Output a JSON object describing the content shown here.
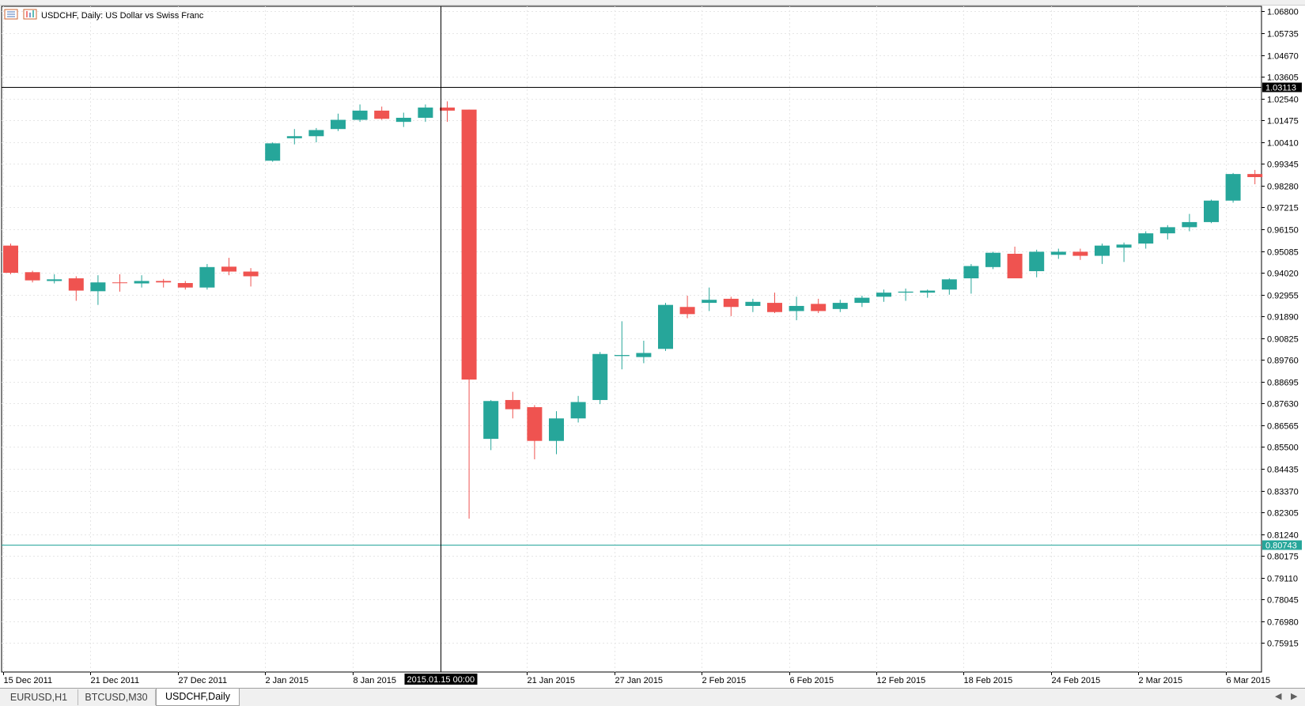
{
  "window": {
    "title": "USDCHF, Daily:  US Dollar vs Swiss Franc"
  },
  "crosshair": {
    "price_label": "1.03113",
    "time_label": "2015.01.15 00:00"
  },
  "levels": {
    "bid_label": "0.80743",
    "bid_value": 0.80743,
    "bid_color": "#26a69a"
  },
  "tabs": [
    {
      "label": "EURUSD,H1",
      "active": false
    },
    {
      "label": "BTCUSD,M30",
      "active": false
    },
    {
      "label": "USDCHF,Daily",
      "active": true
    }
  ],
  "colors": {
    "bull": "#26a69a",
    "bear": "#ef5350",
    "grid": "#e6e6e6",
    "axis": "#000000"
  },
  "chart_data": {
    "type": "candlestick",
    "title": "USDCHF, Daily:  US Dollar vs Swiss Franc",
    "y_range": [
      0.745,
      1.0705
    ],
    "y_ticks": [
      "1.06800",
      "1.05735",
      "1.04670",
      "1.03605",
      "1.02540",
      "1.01475",
      "1.00410",
      "0.99345",
      "0.98280",
      "0.97215",
      "0.96150",
      "0.95085",
      "0.94020",
      "0.92955",
      "0.91890",
      "0.90825",
      "0.89760",
      "0.88695",
      "0.87630",
      "0.86565",
      "0.85500",
      "0.84435",
      "0.83370",
      "0.82305",
      "0.81240",
      "0.80175",
      "0.79110",
      "0.78045",
      "0.76980",
      "0.75915"
    ],
    "x_labels": [
      {
        "label": "15 Dec 2011",
        "index": 0
      },
      {
        "label": "21 Dec 2011",
        "index": 4
      },
      {
        "label": "27 Dec 2011",
        "index": 8
      },
      {
        "label": "2 Jan 2015",
        "index": 12
      },
      {
        "label": "8 Jan 2015",
        "index": 16
      },
      {
        "label": "21 Jan 2015",
        "index": 24
      },
      {
        "label": "27 Jan 2015",
        "index": 28
      },
      {
        "label": "2 Feb 2015",
        "index": 32
      },
      {
        "label": "6 Feb 2015",
        "index": 36
      },
      {
        "label": "12 Feb 2015",
        "index": 40
      },
      {
        "label": "18 Feb 2015",
        "index": 44
      },
      {
        "label": "24 Feb 2015",
        "index": 48
      },
      {
        "label": "2 Mar 2015",
        "index": 52
      },
      {
        "label": "6 Mar 2015",
        "index": 56
      }
    ],
    "crosshair_index": 20,
    "crosshair_price": 1.03113,
    "candles": [
      {
        "o": 0.9535,
        "h": 0.9545,
        "l": 0.9395,
        "c": 0.9402
      },
      {
        "o": 0.9405,
        "h": 0.9412,
        "l": 0.9355,
        "c": 0.9365
      },
      {
        "o": 0.9362,
        "h": 0.9395,
        "l": 0.935,
        "c": 0.937
      },
      {
        "o": 0.9375,
        "h": 0.9385,
        "l": 0.9265,
        "c": 0.9315
      },
      {
        "o": 0.9312,
        "h": 0.939,
        "l": 0.9245,
        "c": 0.9355
      },
      {
        "o": 0.9355,
        "h": 0.9395,
        "l": 0.931,
        "c": 0.9352
      },
      {
        "o": 0.935,
        "h": 0.939,
        "l": 0.933,
        "c": 0.9362
      },
      {
        "o": 0.9362,
        "h": 0.9372,
        "l": 0.933,
        "c": 0.9355
      },
      {
        "o": 0.9352,
        "h": 0.9362,
        "l": 0.932,
        "c": 0.933
      },
      {
        "o": 0.933,
        "h": 0.9445,
        "l": 0.932,
        "c": 0.943
      },
      {
        "o": 0.9432,
        "h": 0.9475,
        "l": 0.939,
        "c": 0.9408
      },
      {
        "o": 0.9408,
        "h": 0.9425,
        "l": 0.9335,
        "c": 0.9385
      },
      {
        "o": 0.995,
        "h": 1.004,
        "l": 0.9945,
        "c": 1.0035
      },
      {
        "o": 1.006,
        "h": 1.0105,
        "l": 1.003,
        "c": 1.007
      },
      {
        "o": 1.007,
        "h": 1.011,
        "l": 1.004,
        "c": 1.01
      },
      {
        "o": 1.0105,
        "h": 1.018,
        "l": 1.0095,
        "c": 1.015
      },
      {
        "o": 1.015,
        "h": 1.0225,
        "l": 1.014,
        "c": 1.0195
      },
      {
        "o": 1.0195,
        "h": 1.0215,
        "l": 1.015,
        "c": 1.0155
      },
      {
        "o": 1.014,
        "h": 1.0185,
        "l": 1.0115,
        "c": 1.016
      },
      {
        "o": 1.016,
        "h": 1.0225,
        "l": 1.014,
        "c": 1.021
      },
      {
        "o": 1.021,
        "h": 1.024,
        "l": 1.014,
        "c": 1.0195
      },
      {
        "o": 1.02,
        "h": 1.02,
        "l": 0.82,
        "c": 0.888
      },
      {
        "o": 0.859,
        "h": 0.878,
        "l": 0.8535,
        "c": 0.8775
      },
      {
        "o": 0.878,
        "h": 0.882,
        "l": 0.869,
        "c": 0.8735
      },
      {
        "o": 0.8745,
        "h": 0.8755,
        "l": 0.849,
        "c": 0.858
      },
      {
        "o": 0.858,
        "h": 0.8725,
        "l": 0.8515,
        "c": 0.869
      },
      {
        "o": 0.869,
        "h": 0.88,
        "l": 0.867,
        "c": 0.877
      },
      {
        "o": 0.878,
        "h": 0.9015,
        "l": 0.876,
        "c": 0.9005
      },
      {
        "o": 0.8995,
        "h": 0.9165,
        "l": 0.893,
        "c": 0.9
      },
      {
        "o": 0.899,
        "h": 0.907,
        "l": 0.896,
        "c": 0.901
      },
      {
        "o": 0.903,
        "h": 0.9255,
        "l": 0.902,
        "c": 0.9245
      },
      {
        "o": 0.9235,
        "h": 0.929,
        "l": 0.918,
        "c": 0.92
      },
      {
        "o": 0.9255,
        "h": 0.933,
        "l": 0.9215,
        "c": 0.927
      },
      {
        "o": 0.9275,
        "h": 0.9285,
        "l": 0.919,
        "c": 0.9235
      },
      {
        "o": 0.924,
        "h": 0.9275,
        "l": 0.921,
        "c": 0.926
      },
      {
        "o": 0.9255,
        "h": 0.9305,
        "l": 0.9205,
        "c": 0.921
      },
      {
        "o": 0.9215,
        "h": 0.9285,
        "l": 0.917,
        "c": 0.924
      },
      {
        "o": 0.925,
        "h": 0.9275,
        "l": 0.9205,
        "c": 0.9215
      },
      {
        "o": 0.9225,
        "h": 0.927,
        "l": 0.921,
        "c": 0.9255
      },
      {
        "o": 0.9255,
        "h": 0.929,
        "l": 0.9235,
        "c": 0.928
      },
      {
        "o": 0.9285,
        "h": 0.932,
        "l": 0.926,
        "c": 0.9305
      },
      {
        "o": 0.9305,
        "h": 0.9325,
        "l": 0.9265,
        "c": 0.931
      },
      {
        "o": 0.9305,
        "h": 0.932,
        "l": 0.928,
        "c": 0.9315
      },
      {
        "o": 0.932,
        "h": 0.9375,
        "l": 0.9295,
        "c": 0.937
      },
      {
        "o": 0.9375,
        "h": 0.9445,
        "l": 0.93,
        "c": 0.9435
      },
      {
        "o": 0.943,
        "h": 0.9505,
        "l": 0.942,
        "c": 0.95
      },
      {
        "o": 0.9495,
        "h": 0.953,
        "l": 0.938,
        "c": 0.9375
      },
      {
        "o": 0.941,
        "h": 0.9515,
        "l": 0.938,
        "c": 0.9505
      },
      {
        "o": 0.949,
        "h": 0.952,
        "l": 0.947,
        "c": 0.9505
      },
      {
        "o": 0.9505,
        "h": 0.952,
        "l": 0.9465,
        "c": 0.9485
      },
      {
        "o": 0.9485,
        "h": 0.9545,
        "l": 0.9445,
        "c": 0.9535
      },
      {
        "o": 0.9525,
        "h": 0.955,
        "l": 0.9455,
        "c": 0.954
      },
      {
        "o": 0.9545,
        "h": 0.9605,
        "l": 0.952,
        "c": 0.9595
      },
      {
        "o": 0.9595,
        "h": 0.9635,
        "l": 0.9565,
        "c": 0.9625
      },
      {
        "o": 0.9625,
        "h": 0.969,
        "l": 0.9605,
        "c": 0.965
      },
      {
        "o": 0.965,
        "h": 0.976,
        "l": 0.9645,
        "c": 0.9755
      },
      {
        "o": 0.9755,
        "h": 0.989,
        "l": 0.9745,
        "c": 0.9885
      },
      {
        "o": 0.9885,
        "h": 0.9905,
        "l": 0.9835,
        "c": 0.987
      }
    ]
  }
}
